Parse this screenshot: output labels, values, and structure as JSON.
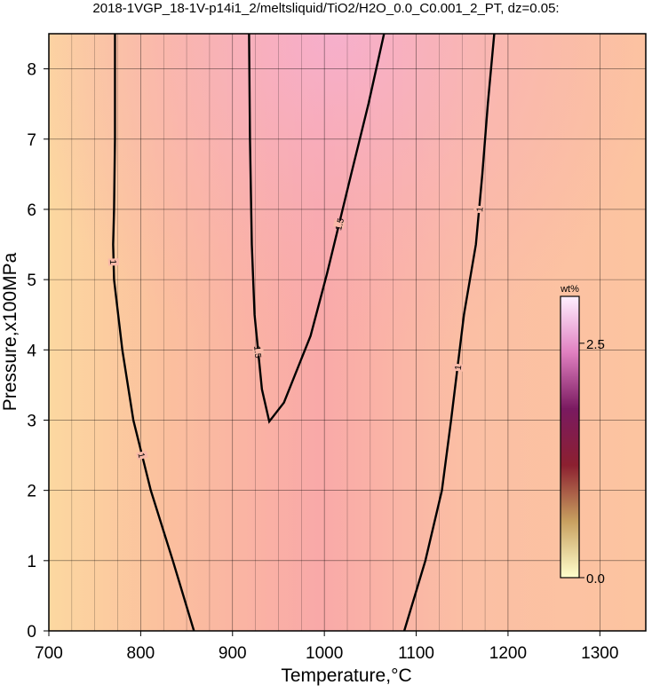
{
  "chart_data": {
    "type": "contour",
    "title": "2018-1VGP_18-1V-p14i1_2/meltsliquid/TiO2/H2O_0.0_C0.001_2_PT, dz=0.05:",
    "x_label": "Temperature,°C",
    "y_label": "Pressure,x100MPa",
    "xlim": [
      700,
      1350
    ],
    "ylim": [
      0,
      8.5
    ],
    "xticks": [
      700,
      800,
      900,
      1000,
      1100,
      1200,
      1300
    ],
    "xminor": [
      725,
      750,
      775,
      825,
      850,
      875,
      925,
      950,
      975,
      1025,
      1050,
      1075,
      1125,
      1150,
      1175
    ],
    "yticks": [
      0,
      1,
      2,
      3,
      4,
      5,
      6,
      7,
      8
    ],
    "grid": true,
    "line_color": "#000000",
    "contours": [
      {
        "level": 1,
        "x": [
          772,
          772,
          771,
          770,
          771,
          780,
          792,
          811,
          835,
          858
        ],
        "y": [
          8.5,
          7,
          6,
          5.5,
          5,
          4,
          3,
          2,
          1,
          0
        ]
      },
      {
        "level": 1,
        "x": [
          1087,
          1110,
          1128,
          1138,
          1152,
          1165,
          1172,
          1178,
          1185
        ],
        "y": [
          0,
          1,
          2,
          3,
          4.5,
          5.5,
          6.5,
          7.5,
          8.5
        ]
      },
      {
        "level": 1.5,
        "x": [
          918,
          919,
          921,
          924,
          932,
          940,
          956,
          985,
          1003,
          1029,
          1048,
          1065
        ],
        "y": [
          8.5,
          7,
          5.5,
          4.5,
          3.44,
          2.98,
          3.25,
          4.2,
          5.09,
          6.49,
          7.5,
          8.5
        ]
      }
    ],
    "colorbar": {
      "label": "wt%",
      "lim": [
        0,
        3
      ],
      "ticks": [
        {
          "value": 0,
          "label": "0.0"
        },
        2.5
      ],
      "colors": [
        "#ffffcc",
        "#c8a060",
        "#8c2030",
        "#7a1a60",
        "#e080c0",
        "#fff0ff"
      ]
    }
  }
}
